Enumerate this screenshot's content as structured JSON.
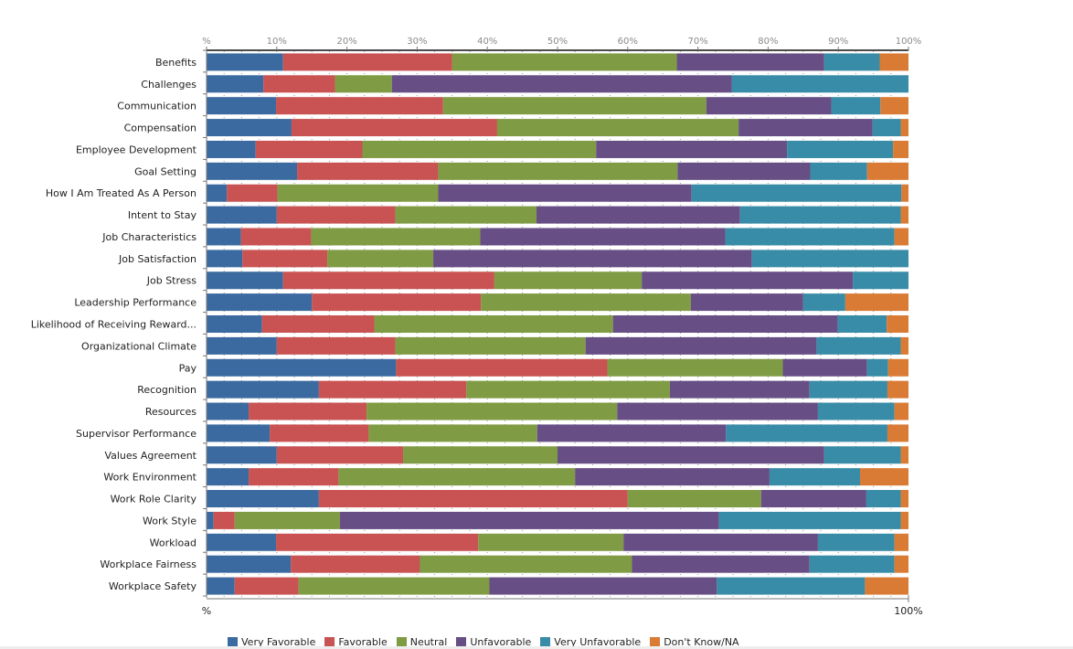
{
  "chart_data": {
    "type": "bar",
    "orientation": "horizontal",
    "stacked": "percent",
    "title": "",
    "xlabel": "",
    "ylabel": "",
    "xlim": [
      0,
      100
    ],
    "grid": true,
    "legend_position": "bottom",
    "top_ticks": [
      "%",
      "10%",
      "20%",
      "30%",
      "40%",
      "50%",
      "60%",
      "70%",
      "80%",
      "90%",
      "100%"
    ],
    "bottom_ticks": [
      "%",
      "100%"
    ],
    "categories": [
      "Benefits",
      "Challenges",
      "Communication",
      "Compensation",
      "Employee Development",
      "Goal Setting",
      "How I Am Treated As A Person",
      "Intent to Stay",
      "Job Characteristics",
      "Job Satisfaction",
      "Job Stress",
      "Leadership Performance",
      "Likelihood of Receiving Reward...",
      "Organizational Climate",
      "Pay",
      "Recognition",
      "Resources",
      "Supervisor Performance",
      "Values Agreement",
      "Work Environment",
      "Work Role Clarity",
      "Work Style",
      "Workload",
      "Workplace Fairness",
      "Workplace Safety"
    ],
    "series": [
      {
        "name": "Very Favorable",
        "color": "#3b6aa0",
        "values": [
          10.9,
          8.1,
          9.9,
          12.1,
          7.0,
          12.9,
          2.9,
          10.0,
          4.9,
          5.1,
          10.9,
          15.0,
          7.9,
          10.0,
          27.0,
          16.0,
          6.0,
          9.0,
          10.0,
          6.0,
          16.0,
          1.0,
          9.9,
          12.0,
          4.0
        ]
      },
      {
        "name": "Favorable",
        "color": "#c95253",
        "values": [
          24.1,
          10.2,
          23.8,
          29.3,
          15.2,
          20.1,
          7.2,
          16.9,
          10.0,
          12.1,
          30.1,
          24.1,
          16.0,
          16.9,
          30.1,
          21.0,
          16.8,
          14.1,
          18.0,
          12.8,
          44.0,
          3.0,
          28.8,
          18.4,
          9.1
        ]
      },
      {
        "name": "Neutral",
        "color": "#7f9b43",
        "values": [
          32.0,
          8.1,
          37.5,
          34.4,
          33.3,
          34.1,
          22.9,
          20.1,
          24.1,
          15.1,
          21.0,
          29.9,
          34.0,
          27.1,
          25.0,
          29.0,
          35.7,
          24.0,
          22.0,
          33.7,
          19.0,
          15.0,
          20.7,
          30.2,
          27.2
        ]
      },
      {
        "name": "Unfavorable",
        "color": "#674e85",
        "values": [
          21.0,
          48.4,
          17.8,
          19.1,
          27.2,
          18.9,
          36.1,
          29.0,
          34.9,
          45.4,
          30.1,
          16.0,
          32.0,
          32.9,
          12.0,
          19.9,
          28.6,
          26.9,
          38.0,
          27.7,
          15.0,
          54.0,
          27.7,
          25.3,
          32.4
        ]
      },
      {
        "name": "Very Unfavorable",
        "color": "#398ca7",
        "values": [
          7.9,
          25.2,
          7.0,
          4.0,
          15.1,
          8.1,
          29.9,
          22.9,
          24.1,
          22.3,
          7.9,
          6.0,
          7.0,
          12.0,
          3.0,
          11.1,
          10.9,
          23.0,
          10.9,
          12.9,
          4.9,
          25.9,
          10.9,
          12.1,
          21.1
        ]
      },
      {
        "name": "Don't Know/NA",
        "color": "#d97b35",
        "values": [
          4.1,
          0,
          4.0,
          1.1,
          2.2,
          5.9,
          1.0,
          1.1,
          2.0,
          0,
          0,
          9.0,
          3.1,
          1.1,
          2.9,
          3.0,
          2.0,
          3.0,
          1.1,
          6.9,
          1.1,
          1.1,
          2.0,
          2.0,
          6.2
        ]
      }
    ]
  }
}
